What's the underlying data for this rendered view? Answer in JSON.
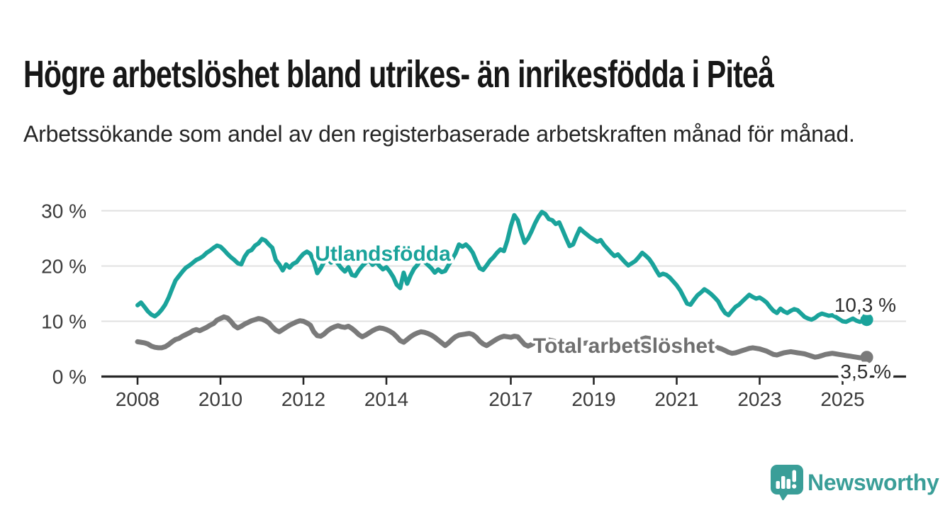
{
  "header": {
    "title": "Högre arbetslöshet bland utrikes- än inrikesfödda i Piteå",
    "subtitle": "Arbetssökande som andel av den registerbaserade arbetskraften månad för månad."
  },
  "branding": {
    "name": "Newsworthy",
    "icon": "newsworthy-speech-bubble-bar-chart-icon",
    "color": "#3A9E98"
  },
  "chart_data": {
    "type": "line",
    "unit": "%",
    "frequency": "monthly",
    "x_start": "2008-01",
    "x_end": "2025-08",
    "ylim": [
      0,
      32
    ],
    "grid": "horizontal",
    "legend_position": "inline-labels",
    "y_ticks": [
      {
        "label": "30 %",
        "value": 30
      },
      {
        "label": "20 %",
        "value": 20
      },
      {
        "label": "10 %",
        "value": 10
      },
      {
        "label": "0 %",
        "value": 0
      }
    ],
    "x_ticks": [
      {
        "label": "2008",
        "year": 2008
      },
      {
        "label": "2010",
        "year": 2010
      },
      {
        "label": "2012",
        "year": 2012
      },
      {
        "label": "2014",
        "year": 2014
      },
      {
        "label": "2017",
        "year": 2017
      },
      {
        "label": "2019",
        "year": 2019
      },
      {
        "label": "2021",
        "year": 2021
      },
      {
        "label": "2023",
        "year": 2023
      },
      {
        "label": "2025",
        "year": 2025
      }
    ],
    "series": [
      {
        "name": "Utlandsfödda",
        "color": "#1AA39B",
        "label_color": "#1AA39B",
        "end_label": "10,3 %",
        "end_value": 10.3,
        "values": [
          12.9,
          13.4,
          12.6,
          11.8,
          11.2,
          10.9,
          11.4,
          12.1,
          13.0,
          14.3,
          15.9,
          17.4,
          18.2,
          19.0,
          19.7,
          20.1,
          20.6,
          21.1,
          21.4,
          21.8,
          22.4,
          22.8,
          23.3,
          23.7,
          23.5,
          22.9,
          22.2,
          21.6,
          21.1,
          20.5,
          20.3,
          21.7,
          22.6,
          22.9,
          23.7,
          24.1,
          24.9,
          24.6,
          23.9,
          23.3,
          21.1,
          20.3,
          19.2,
          20.3,
          19.7,
          20.4,
          20.7,
          21.5,
          22.2,
          22.6,
          22.2,
          20.8,
          18.7,
          19.6,
          20.8,
          21.4,
          20.6,
          21.2,
          20.4,
          19.6,
          19.0,
          19.8,
          18.4,
          18.2,
          19.2,
          20.0,
          20.6,
          21.1,
          20.2,
          20.8,
          20.0,
          19.4,
          19.8,
          19.0,
          18.0,
          16.6,
          16.0,
          18.8,
          16.8,
          18.3,
          19.5,
          20.2,
          21.3,
          20.8,
          20.2,
          19.6,
          18.8,
          19.4,
          18.9,
          19.1,
          20.2,
          21.2,
          22.3,
          23.9,
          23.5,
          23.9,
          23.3,
          22.4,
          20.9,
          19.6,
          19.3,
          20.1,
          21.0,
          21.6,
          22.4,
          23.0,
          22.7,
          24.6,
          27.2,
          29.2,
          28.3,
          26.1,
          24.2,
          25.0,
          26.3,
          27.7,
          28.9,
          29.8,
          29.4,
          28.5,
          28.3,
          27.6,
          27.9,
          26.5,
          25.0,
          23.6,
          23.9,
          25.4,
          26.8,
          26.2,
          25.7,
          25.2,
          24.8,
          24.4,
          24.7,
          23.8,
          23.1,
          22.4,
          21.8,
          22.1,
          21.4,
          20.7,
          20.1,
          20.5,
          20.9,
          21.6,
          22.4,
          21.9,
          21.3,
          20.4,
          19.3,
          18.3,
          18.6,
          18.4,
          17.9,
          17.2,
          16.5,
          15.6,
          14.4,
          13.2,
          13.0,
          13.9,
          14.7,
          15.2,
          15.8,
          15.4,
          14.9,
          14.3,
          13.6,
          12.4,
          11.5,
          11.1,
          11.9,
          12.6,
          13.0,
          13.6,
          14.2,
          14.8,
          14.4,
          14.1,
          14.3,
          13.9,
          13.4,
          12.6,
          11.9,
          11.5,
          12.3,
          11.8,
          11.5,
          11.9,
          12.2,
          12.0,
          11.4,
          10.8,
          10.5,
          10.3,
          10.6,
          11.1,
          11.4,
          11.2,
          11.0,
          11.1,
          10.8,
          10.4,
          10.0,
          9.9,
          10.2,
          10.5,
          10.1,
          9.9,
          10.1,
          10.3
        ]
      },
      {
        "name": "Total arbetslöshet",
        "color": "#7A7A7A",
        "label_color": "#6F6F6F",
        "end_label": "3,5 %",
        "end_value": 3.5,
        "values": [
          6.3,
          6.2,
          6.1,
          5.9,
          5.5,
          5.3,
          5.2,
          5.2,
          5.4,
          5.8,
          6.3,
          6.7,
          6.9,
          7.3,
          7.6,
          7.9,
          8.3,
          8.5,
          8.3,
          8.6,
          8.9,
          9.3,
          9.6,
          10.2,
          10.5,
          10.8,
          10.6,
          10.0,
          9.2,
          8.8,
          9.1,
          9.5,
          9.8,
          10.1,
          10.3,
          10.5,
          10.4,
          10.1,
          9.7,
          9.0,
          8.4,
          8.1,
          8.5,
          8.9,
          9.3,
          9.6,
          9.9,
          10.1,
          10.0,
          9.7,
          9.3,
          8.1,
          7.4,
          7.3,
          7.7,
          8.3,
          8.7,
          9.0,
          9.2,
          9.0,
          8.9,
          9.1,
          8.7,
          8.2,
          7.6,
          7.2,
          7.5,
          7.9,
          8.3,
          8.6,
          8.8,
          8.7,
          8.5,
          8.2,
          7.8,
          7.2,
          6.5,
          6.2,
          6.7,
          7.2,
          7.6,
          7.9,
          8.1,
          8.0,
          7.8,
          7.5,
          7.1,
          6.6,
          6.1,
          5.6,
          6.1,
          6.7,
          7.2,
          7.5,
          7.6,
          7.7,
          7.8,
          7.6,
          7.1,
          6.4,
          5.9,
          5.6,
          6.0,
          6.4,
          6.8,
          7.1,
          7.3,
          7.2,
          7.1,
          7.3,
          7.2,
          6.5,
          5.8,
          5.5,
          5.8,
          6.2,
          6.5,
          6.6,
          6.7,
          6.6,
          6.5,
          6.3,
          6.0,
          5.6,
          5.2,
          5.1,
          5.4,
          5.7,
          5.9,
          6.0,
          6.1,
          6.0,
          5.9,
          5.8,
          5.6,
          5.3,
          5.0,
          4.9,
          5.2,
          5.5,
          5.7,
          5.8,
          5.9,
          6.0,
          6.1,
          6.3,
          6.8,
          7.0,
          6.9,
          6.7,
          6.6,
          6.4,
          6.2,
          6.0,
          5.9,
          5.8,
          5.7,
          5.6,
          5.4,
          5.2,
          5.0,
          4.9,
          5.0,
          5.2,
          5.3,
          5.3,
          5.2,
          5.3,
          5.2,
          5.0,
          4.7,
          4.4,
          4.2,
          4.3,
          4.5,
          4.7,
          4.9,
          5.1,
          5.2,
          5.1,
          5.0,
          4.8,
          4.6,
          4.3,
          4.0,
          3.9,
          4.1,
          4.3,
          4.4,
          4.5,
          4.4,
          4.3,
          4.2,
          4.1,
          3.9,
          3.7,
          3.5,
          3.6,
          3.8,
          4.0,
          4.1,
          4.2,
          4.1,
          4.0,
          3.9,
          3.8,
          3.7,
          3.6,
          3.5,
          3.4,
          3.4,
          3.5
        ]
      }
    ]
  }
}
